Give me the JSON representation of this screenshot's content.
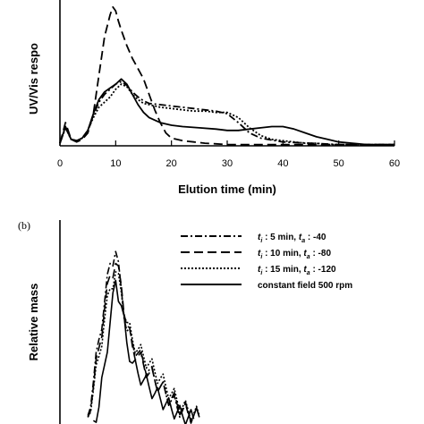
{
  "chart_data": [
    {
      "panel": "",
      "type": "line",
      "xlabel": "Elution time (min)",
      "ylabel": "UV/Vis respo",
      "xlim": [
        0,
        60
      ],
      "x_ticks": [
        "0",
        "10",
        "20",
        "30",
        "40",
        "50",
        "60"
      ],
      "series": [
        {
          "style": "dashed",
          "color": "#000000",
          "x": [
            0,
            1,
            2,
            3,
            4,
            5,
            6,
            7,
            8,
            9,
            9.5,
            10,
            10.5,
            11,
            12,
            13,
            14,
            15,
            16,
            17,
            18,
            19,
            20,
            22,
            24,
            26,
            28,
            30,
            35,
            40,
            45,
            50,
            55,
            60
          ],
          "y": [
            0.02,
            0.18,
            0.05,
            0.03,
            0.05,
            0.1,
            0.25,
            0.55,
            0.85,
            1.02,
            1.08,
            1.05,
            0.97,
            0.9,
            0.78,
            0.68,
            0.6,
            0.52,
            0.4,
            0.28,
            0.18,
            0.1,
            0.06,
            0.04,
            0.03,
            0.02,
            0.015,
            0.01,
            0.01,
            0.01,
            0.01,
            0.01,
            0.01,
            0.01
          ]
        },
        {
          "style": "solid",
          "color": "#000000",
          "x": [
            0,
            1,
            2,
            3,
            4,
            5,
            6,
            7,
            8,
            9,
            10,
            11,
            12,
            13,
            14,
            15,
            16,
            17,
            18,
            20,
            22,
            25,
            28,
            30,
            32,
            34,
            36,
            38,
            40,
            42,
            44,
            46,
            48,
            50,
            55,
            60
          ],
          "y": [
            0.02,
            0.15,
            0.05,
            0.04,
            0.06,
            0.12,
            0.25,
            0.36,
            0.42,
            0.45,
            0.48,
            0.52,
            0.48,
            0.4,
            0.32,
            0.26,
            0.22,
            0.2,
            0.18,
            0.16,
            0.15,
            0.14,
            0.13,
            0.12,
            0.12,
            0.13,
            0.14,
            0.15,
            0.15,
            0.13,
            0.1,
            0.07,
            0.05,
            0.03,
            0.01,
            0.01
          ]
        },
        {
          "style": "dotted",
          "color": "#000000",
          "x": [
            0,
            1,
            2,
            3,
            4,
            5,
            6,
            7,
            8,
            9,
            10,
            11,
            12,
            13,
            14,
            15,
            16,
            18,
            20,
            22,
            24,
            26,
            28,
            30,
            32,
            34,
            36,
            38,
            40,
            42,
            44,
            46,
            48,
            50,
            55,
            60
          ],
          "y": [
            0.02,
            0.14,
            0.05,
            0.04,
            0.06,
            0.12,
            0.22,
            0.3,
            0.34,
            0.38,
            0.44,
            0.48,
            0.46,
            0.4,
            0.36,
            0.33,
            0.32,
            0.3,
            0.29,
            0.28,
            0.27,
            0.27,
            0.26,
            0.26,
            0.22,
            0.14,
            0.08,
            0.05,
            0.04,
            0.03,
            0.02,
            0.02,
            0.01,
            0.01,
            0.01,
            0.01
          ]
        },
        {
          "style": "dashdot",
          "color": "#000000",
          "x": [
            0,
            1,
            2,
            3,
            4,
            5,
            6,
            7,
            8,
            9,
            10,
            11,
            12,
            13,
            14,
            15,
            16,
            18,
            20,
            22,
            24,
            26,
            28,
            30,
            32,
            34,
            36,
            40,
            45,
            50,
            55,
            60
          ],
          "y": [
            0.02,
            0.14,
            0.05,
            0.04,
            0.06,
            0.12,
            0.24,
            0.34,
            0.4,
            0.44,
            0.48,
            0.5,
            0.47,
            0.42,
            0.38,
            0.35,
            0.33,
            0.32,
            0.31,
            0.3,
            0.29,
            0.28,
            0.27,
            0.25,
            0.18,
            0.1,
            0.06,
            0.03,
            0.02,
            0.01,
            0.01,
            0.01
          ]
        }
      ]
    },
    {
      "panel": "(b)",
      "type": "line",
      "xlabel": "",
      "ylabel": "Relative mass",
      "xlim": [
        0,
        60
      ],
      "legend": {
        "position": "top-right",
        "entries": [
          {
            "style": "dashdot",
            "ti": "5 min",
            "ta": "-40"
          },
          {
            "style": "dashed",
            "ti": "10 min",
            "ta": "-80"
          },
          {
            "style": "dotted",
            "ti": "15 min",
            "ta": "-120"
          },
          {
            "style": "solid",
            "text": "constant field 500 rpm"
          }
        ]
      },
      "legend_labels": {
        "t": "t",
        "i": "i",
        "a": "a",
        "sep": " : ",
        "mid": ", "
      },
      "series": [
        {
          "style": "dashdot",
          "color": "#000000",
          "x": [
            5,
            6,
            7,
            8,
            9,
            10,
            11,
            12,
            13,
            14,
            15,
            16,
            17,
            18,
            19,
            20,
            21,
            22,
            23,
            24,
            25
          ],
          "y": [
            0.05,
            0.25,
            0.5,
            0.72,
            0.95,
            1.02,
            0.8,
            0.55,
            0.48,
            0.42,
            0.36,
            0.32,
            0.26,
            0.22,
            0.18,
            0.14,
            0.1,
            0.08,
            0.06,
            0.05,
            0.04
          ]
        },
        {
          "style": "dashed",
          "color": "#000000",
          "x": [
            5,
            6,
            7,
            8,
            9,
            10,
            11,
            12,
            13,
            14,
            15,
            16,
            17,
            18,
            19,
            20,
            21,
            22,
            23,
            24,
            25
          ],
          "y": [
            0.04,
            0.22,
            0.45,
            0.68,
            0.88,
            0.95,
            0.82,
            0.58,
            0.46,
            0.4,
            0.35,
            0.3,
            0.26,
            0.22,
            0.18,
            0.15,
            0.12,
            0.09,
            0.07,
            0.05,
            0.04
          ]
        },
        {
          "style": "dotted",
          "color": "#000000",
          "x": [
            5,
            6,
            7,
            8,
            9,
            10,
            11,
            12,
            13,
            14,
            15,
            16,
            17,
            18,
            19,
            20,
            21,
            22,
            23,
            24,
            25
          ],
          "y": [
            0.04,
            0.2,
            0.4,
            0.62,
            0.8,
            0.9,
            0.78,
            0.6,
            0.5,
            0.44,
            0.4,
            0.36,
            0.31,
            0.27,
            0.22,
            0.18,
            0.14,
            0.1,
            0.08,
            0.06,
            0.05
          ]
        },
        {
          "style": "solid",
          "color": "#000000",
          "x": [
            6,
            7,
            8,
            9,
            10,
            11,
            12,
            13,
            14,
            15,
            16,
            17,
            18,
            19,
            20,
            21,
            22,
            23,
            24
          ],
          "y": [
            0.02,
            0.1,
            0.35,
            0.6,
            0.85,
            0.7,
            0.48,
            0.36,
            0.3,
            0.26,
            0.22,
            0.18,
            0.15,
            0.12,
            0.09,
            0.07,
            0.05,
            0.04,
            0.03
          ]
        }
      ]
    }
  ]
}
